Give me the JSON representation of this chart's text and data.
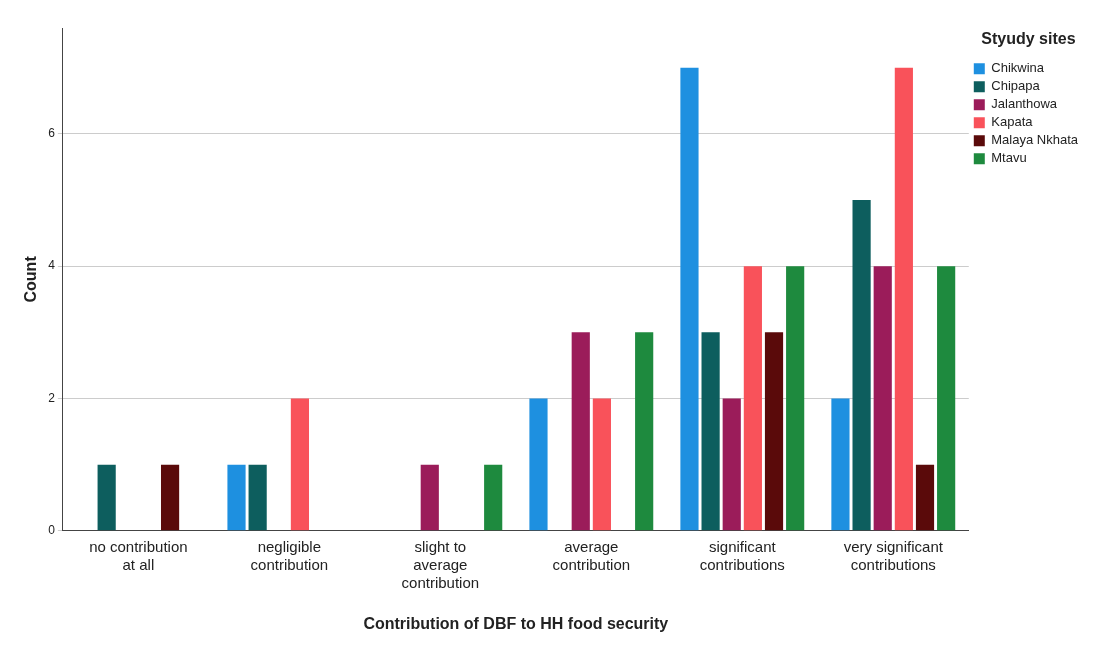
{
  "chart_data": {
    "type": "bar",
    "xlabel": "Contribution of DBF to HH food security",
    "ylabel": "Count",
    "legend_title": "Styudy sites",
    "categories": [
      "no contribution at all",
      "negligible contribution",
      "slight to average contribution",
      "average contribution",
      "significant contributions",
      "very significant contributions"
    ],
    "series": [
      {
        "name": "Chikwina",
        "color": "#1e90e0",
        "values": [
          0,
          1,
          0,
          2,
          7,
          2
        ]
      },
      {
        "name": "Chipapa",
        "color": "#0d5e5e",
        "values": [
          1,
          1,
          0,
          0,
          3,
          5
        ]
      },
      {
        "name": "Jalanthowa",
        "color": "#9b1c5a",
        "values": [
          0,
          0,
          1,
          3,
          2,
          4
        ]
      },
      {
        "name": "Kapata",
        "color": "#f9525a",
        "values": [
          0,
          2,
          0,
          2,
          4,
          7
        ]
      },
      {
        "name": "Malaya Nkhata",
        "color": "#5a0a0a",
        "values": [
          1,
          0,
          0,
          0,
          3,
          1
        ]
      },
      {
        "name": "Mtavu",
        "color": "#1e8a3e",
        "values": [
          0,
          0,
          1,
          3,
          4,
          4
        ]
      }
    ],
    "ylim": [
      0,
      7.6
    ],
    "yticks": [
      0,
      2,
      4,
      6
    ],
    "grid": "y",
    "legend": "top right"
  }
}
